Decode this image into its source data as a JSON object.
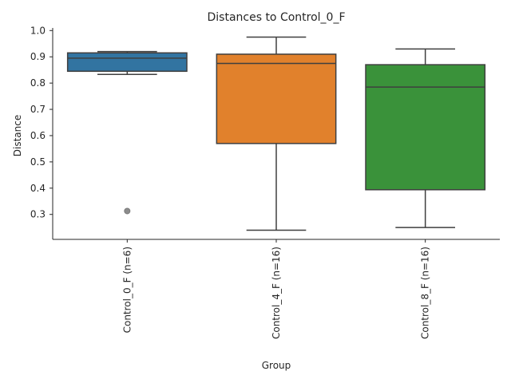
{
  "chart_data": {
    "type": "box",
    "title": "Distances to Control_0_F",
    "xlabel": "Group",
    "ylabel": "Distance",
    "ylim": [
      0.205,
      1.01
    ],
    "yticks": [
      0.3,
      0.4,
      0.5,
      0.6,
      0.7,
      0.8,
      0.9,
      1.0
    ],
    "ytick_labels": [
      "0.3",
      "0.4",
      "0.5",
      "0.6",
      "0.7",
      "0.8",
      "0.9",
      "1.0"
    ],
    "grid": false,
    "categories": [
      "Control_0_F (n=6)",
      "Control_4_F (n=16)",
      "Control_8_F (n=16)"
    ],
    "boxes": [
      {
        "label": "Control_0_F (n=6)",
        "color": "#3274a1",
        "whisker_low": 0.833,
        "q1": 0.845,
        "median": 0.895,
        "q3": 0.915,
        "whisker_high": 0.92,
        "outliers": [
          0.313
        ]
      },
      {
        "label": "Control_4_F (n=16)",
        "color": "#e1812c",
        "whisker_low": 0.24,
        "q1": 0.57,
        "median": 0.875,
        "q3": 0.91,
        "whisker_high": 0.975,
        "outliers": []
      },
      {
        "label": "Control_8_F (n=16)",
        "color": "#3a923a",
        "whisker_low": 0.25,
        "q1": 0.394,
        "median": 0.785,
        "q3": 0.87,
        "whisker_high": 0.93,
        "outliers": []
      }
    ]
  }
}
